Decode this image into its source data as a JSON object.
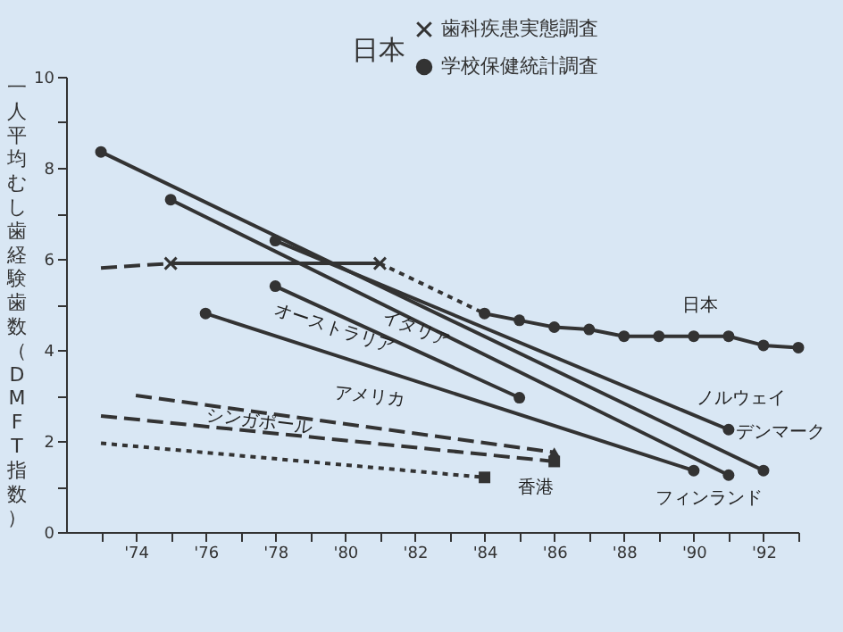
{
  "chart_data": {
    "type": "line",
    "ylabel": "一人平均むし歯経験歯数（DMFT指数）",
    "legend_title": "日本",
    "legend": "top right",
    "xlim": [
      1972,
      1993
    ],
    "xticks": [
      {
        "value": 1973,
        "label": null
      },
      {
        "value": 1974,
        "label": "'74"
      },
      {
        "value": 1975,
        "label": null
      },
      {
        "value": 1976,
        "label": "'76"
      },
      {
        "value": 1977,
        "label": null
      },
      {
        "value": 1978,
        "label": "'78"
      },
      {
        "value": 1979,
        "label": null
      },
      {
        "value": 1980,
        "label": "'80"
      },
      {
        "value": 1981,
        "label": null
      },
      {
        "value": 1982,
        "label": "'82"
      },
      {
        "value": 1983,
        "label": null
      },
      {
        "value": 1984,
        "label": "'84"
      },
      {
        "value": 1985,
        "label": null
      },
      {
        "value": 1986,
        "label": "'86"
      },
      {
        "value": 1987,
        "label": null
      },
      {
        "value": 1988,
        "label": "'88"
      },
      {
        "value": 1989,
        "label": null
      },
      {
        "value": 1990,
        "label": "'90"
      },
      {
        "value": 1991,
        "label": null
      },
      {
        "value": 1992,
        "label": "'92"
      },
      {
        "value": 1993,
        "label": null
      }
    ],
    "ylim": [
      0,
      10
    ],
    "yticks": [
      0,
      {
        "value": 1,
        "label": null
      },
      2,
      {
        "value": 3,
        "label": null
      },
      4,
      {
        "value": 5,
        "label": null
      },
      6,
      {
        "value": 7,
        "label": null
      },
      8,
      {
        "value": 9,
        "label": null
      },
      10
    ],
    "series": [
      {
        "name": "歯科疾患実態調査",
        "color": "#333333",
        "x": [
          1975,
          1981
        ],
        "values": [
          5.9,
          5.9
        ],
        "marker": "cross",
        "line_style": "solid"
      },
      {
        "name": "学校保健統計調査",
        "color": "#333333",
        "x": [
          1984,
          1985,
          1986,
          1987,
          1988,
          1989,
          1990,
          1991,
          1992,
          1993
        ],
        "values": [
          4.8,
          4.65,
          4.5,
          4.45,
          4.3,
          4.3,
          4.3,
          4.3,
          4.1,
          4.05
        ],
        "marker": "circle",
        "line_style": "solid"
      },
      {
        "color": "#333333",
        "x": [
          1973,
          1975
        ],
        "values": [
          5.8,
          5.9
        ],
        "marker": "none",
        "line_style": "dashed"
      },
      {
        "color": "#333333",
        "x": [
          1981,
          1984
        ],
        "values": [
          5.9,
          4.8
        ],
        "marker": "none",
        "line_style": "dotted"
      },
      {
        "color": "#333333",
        "x": [
          1973,
          1992
        ],
        "values": [
          8.35,
          1.35
        ],
        "marker": "circle",
        "line_style": "solid"
      },
      {
        "color": "#333333",
        "x": [
          1975,
          1991
        ],
        "values": [
          7.3,
          1.25
        ],
        "marker": "circle",
        "line_style": "solid"
      },
      {
        "color": "#333333",
        "x": [
          1978,
          1991
        ],
        "values": [
          6.4,
          2.25
        ],
        "marker": "circle",
        "line_style": "solid"
      },
      {
        "color": "#333333",
        "x": [
          1978,
          1985
        ],
        "values": [
          5.4,
          2.95
        ],
        "marker": "circle",
        "line_style": "solid"
      },
      {
        "color": "#333333",
        "x": [
          1976,
          1990
        ],
        "values": [
          4.8,
          1.35
        ],
        "marker": "circle",
        "line_style": "solid"
      },
      {
        "color": "#333333",
        "x": [
          1974,
          1986
        ],
        "values": [
          3.0,
          1.75
        ],
        "marker": "none",
        "line_style": "dashed"
      },
      {
        "color": "#333333",
        "x": [
          1973,
          1986
        ],
        "values": [
          2.55,
          1.55
        ],
        "marker": "none",
        "line_style": "dashed"
      },
      {
        "color": "#333333",
        "x": [
          1973,
          1984
        ],
        "values": [
          1.95,
          1.2
        ],
        "marker": "none",
        "line_style": "dotted"
      },
      {
        "type": "scatter",
        "color": "#333333",
        "x": [
          1986
        ],
        "values": [
          1.75
        ],
        "marker": "triangle"
      },
      {
        "type": "scatter",
        "color": "#333333",
        "x": [
          1986,
          1984
        ],
        "values": [
          1.55,
          1.2
        ],
        "marker": "square"
      }
    ],
    "annotations": [
      "日本",
      "ノルウェイ",
      "デンマーク",
      "フィンランド",
      "イタリア",
      "オーストラリア",
      "アメリカ",
      "シンガポール",
      "香港"
    ]
  }
}
